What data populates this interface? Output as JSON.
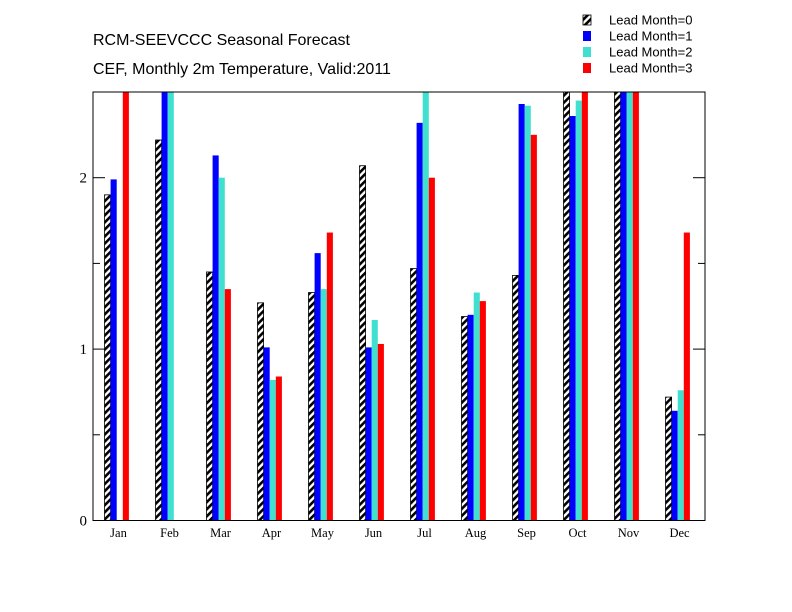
{
  "chart_data": {
    "type": "bar",
    "title": "RCM-SEEVCCC Seasonal Forecast",
    "subtitle": "CEF, Monthly 2m Temperature, Valid:2011",
    "xlabel": "",
    "ylabel": "",
    "ylim": [
      0,
      2.5
    ],
    "yticks": [
      0,
      1,
      2
    ],
    "grid": false,
    "legend_position": "top-right",
    "categories": [
      "Jan",
      "Feb",
      "Mar",
      "Apr",
      "May",
      "Jun",
      "Jul",
      "Aug",
      "Sep",
      "Oct",
      "Nov",
      "Dec"
    ],
    "series": [
      {
        "name": "Lead Month=0",
        "color": "#000000",
        "pattern": "diagonal-hatch",
        "values": [
          1.9,
          2.22,
          1.45,
          1.27,
          1.33,
          2.07,
          1.47,
          1.19,
          1.43,
          2.5,
          2.5,
          0.72
        ]
      },
      {
        "name": "Lead Month=1",
        "color": "#0000ff",
        "pattern": "solid",
        "values": [
          1.99,
          2.5,
          2.13,
          1.01,
          1.56,
          1.01,
          2.32,
          1.2,
          2.43,
          2.36,
          2.5,
          0.64
        ]
      },
      {
        "name": "Lead Month=2",
        "color": "#40e0d0",
        "pattern": "solid",
        "values": [
          0,
          2.5,
          2.0,
          0.82,
          1.35,
          1.17,
          2.5,
          1.33,
          2.42,
          2.45,
          2.5,
          0.76
        ]
      },
      {
        "name": "Lead Month=3",
        "color": "#ff0000",
        "pattern": "solid",
        "values": [
          2.5,
          0,
          1.35,
          0.84,
          1.68,
          1.03,
          2.0,
          1.28,
          2.25,
          2.5,
          2.5,
          1.68
        ]
      }
    ]
  }
}
